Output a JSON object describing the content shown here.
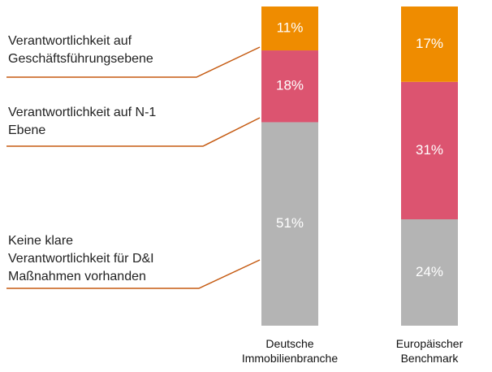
{
  "chart_data": {
    "type": "stacked_bar",
    "categories": [
      "Deutsche\nImmobilienbranche",
      "Europäischer\nBenchmark"
    ],
    "series": [
      {
        "name": "Keine klare\nVerantwortlichkeit für D&I\nMaßnahmen vorhanden",
        "color": "#b4b4b4",
        "values": [
          51,
          24
        ],
        "value_labels": [
          "51%",
          "24%"
        ]
      },
      {
        "name": "Verantwortlichkeit auf N-1\nEbene",
        "color": "#dc5470",
        "values": [
          18,
          31
        ],
        "value_labels": [
          "18%",
          "31%"
        ]
      },
      {
        "name": "Verantwortlichkeit auf\nGeschäftsführungsebene",
        "color": "#ef8c00",
        "values": [
          11,
          17
        ],
        "value_labels": [
          "11%",
          "17%"
        ]
      }
    ]
  }
}
